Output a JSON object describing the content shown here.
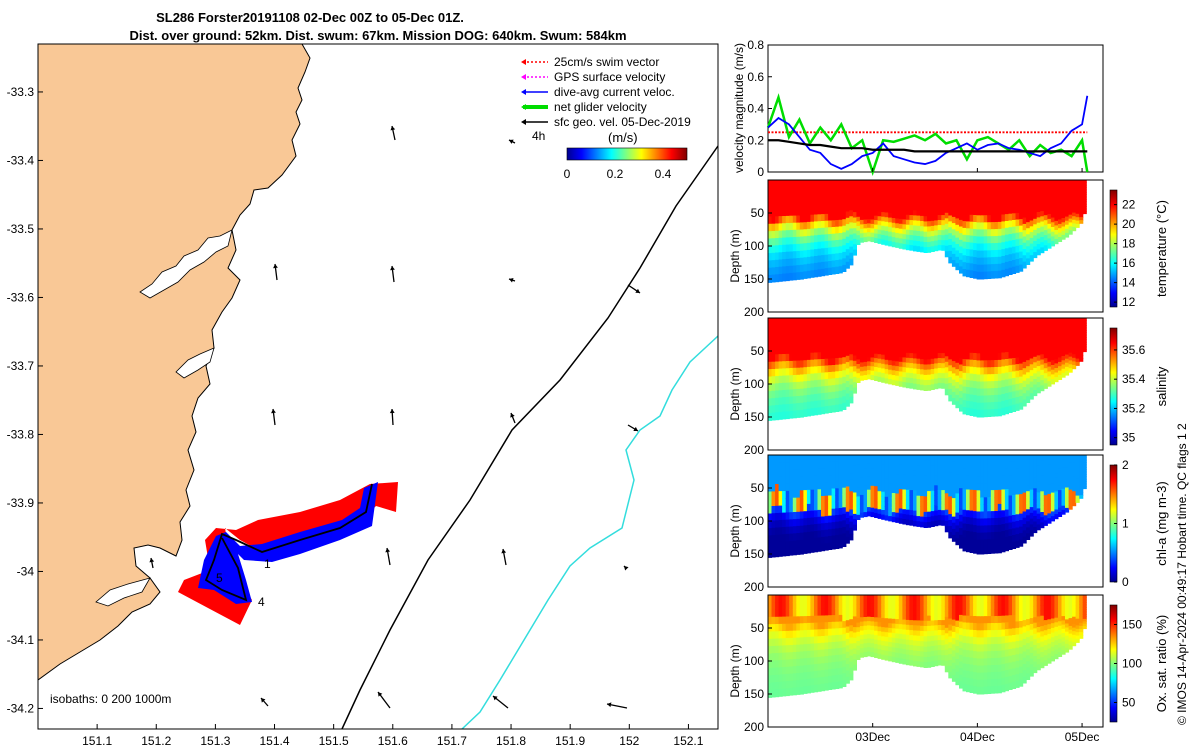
{
  "title": {
    "line1": "SL286 Forster20191108 02-Dec 00Z to 05-Dec 01Z.",
    "line2": "Dist. over ground: 52km. Dist. swum: 67km. Mission DOG: 640km. Swum: 584km"
  },
  "colors": {
    "land": "#f9c896",
    "ocean": "#ffffff",
    "swim": "#ff0000",
    "gps": "#ff00ff",
    "current": "#0000ff",
    "net": "#00dd00",
    "geo": "#000000",
    "isobath_200": "#000000",
    "isobath_1000": "#33dddd"
  },
  "map": {
    "lon_ticks": [
      "151.1",
      "151.2",
      "151.3",
      "151.4",
      "151.5",
      "151.6",
      "151.7",
      "151.8",
      "151.9",
      "152",
      "152.1"
    ],
    "lat_ticks": [
      "-33.3",
      "-33.4",
      "-33.5",
      "-33.6",
      "-33.7",
      "-33.8",
      "-33.9",
      "-34",
      "-34.1",
      "-34.2"
    ],
    "xlim": [
      151.0,
      152.15
    ],
    "ylim": [
      -34.23,
      -33.23
    ],
    "legend": [
      {
        "label": "25cm/s swim vector",
        "color": "#ff0000",
        "style": "dotted"
      },
      {
        "label": "GPS surface velocity",
        "color": "#ff00ff",
        "style": "dotted"
      },
      {
        "label": "dive-avg current veloc.",
        "color": "#0000ff",
        "style": "solid"
      },
      {
        "label": "net glider velocity",
        "color": "#00dd00",
        "style": "bold"
      },
      {
        "label": "sfc geo. vel. 05-Dec-2019",
        "color": "#000000",
        "style": "solid"
      }
    ],
    "legend_note": "4h",
    "colorbar": {
      "label": "(m/s)",
      "ticks": [
        "0",
        "0.2",
        "0.4"
      ],
      "range": [
        0,
        0.5
      ]
    },
    "isobath_label": "isobaths: 0   200  1000m",
    "waypoints": [
      "1",
      "4",
      "5"
    ]
  },
  "chart_data": [
    {
      "type": "line",
      "ylabel": "velocity magnitude (m/s)",
      "ylim": [
        0,
        0.8
      ],
      "yticks": [
        "0",
        "0.2",
        "0.4",
        "0.6",
        "0.8"
      ],
      "x": [
        0.0,
        0.1,
        0.2,
        0.3,
        0.4,
        0.5,
        0.6,
        0.7,
        0.8,
        0.9,
        1.0,
        1.1,
        1.2,
        1.3,
        1.4,
        1.5,
        1.6,
        1.7,
        1.8,
        1.9,
        2.0,
        2.1,
        2.2,
        2.3,
        2.4,
        2.5,
        2.6,
        2.7,
        2.8,
        2.9,
        3.0,
        3.05
      ],
      "series": [
        {
          "color": "#ff0000",
          "values": [
            0.25,
            0.25,
            0.25,
            0.25,
            0.25,
            0.25,
            0.25,
            0.25,
            0.25,
            0.25,
            0.25,
            0.25,
            0.25,
            0.25,
            0.25,
            0.25,
            0.25,
            0.25,
            0.25,
            0.25,
            0.25,
            0.25,
            0.25,
            0.25,
            0.25,
            0.25,
            0.25,
            0.25,
            0.25,
            0.25,
            0.25,
            0.25
          ]
        },
        {
          "color": "#00dd00",
          "values": [
            0.28,
            0.47,
            0.22,
            0.33,
            0.18,
            0.28,
            0.2,
            0.3,
            0.15,
            0.2,
            0.0,
            0.2,
            0.19,
            0.21,
            0.23,
            0.2,
            0.24,
            0.18,
            0.2,
            0.08,
            0.2,
            0.22,
            0.18,
            0.14,
            0.2,
            0.1,
            0.17,
            0.12,
            0.14,
            0.1,
            0.2,
            0.0
          ]
        },
        {
          "color": "#0000ff",
          "values": [
            0.28,
            0.34,
            0.3,
            0.22,
            0.14,
            0.12,
            0.05,
            0.02,
            0.05,
            0.1,
            0.12,
            0.18,
            0.1,
            0.08,
            0.06,
            0.05,
            0.07,
            0.12,
            0.15,
            0.18,
            0.14,
            0.17,
            0.18,
            0.15,
            0.14,
            0.12,
            0.1,
            0.15,
            0.18,
            0.26,
            0.3,
            0.48
          ]
        },
        {
          "color": "#000000",
          "values": [
            0.2,
            0.2,
            0.19,
            0.18,
            0.17,
            0.17,
            0.16,
            0.15,
            0.15,
            0.15,
            0.14,
            0.14,
            0.14,
            0.14,
            0.13,
            0.13,
            0.13,
            0.13,
            0.13,
            0.13,
            0.13,
            0.13,
            0.13,
            0.13,
            0.13,
            0.13,
            0.13,
            0.13,
            0.13,
            0.13,
            0.13,
            0.13
          ]
        }
      ]
    },
    {
      "type": "heatmap",
      "ylabel": "Depth (m)",
      "clabel": "temperature (°C)",
      "ylim": [
        200,
        0
      ],
      "yticks": [
        "50",
        "100",
        "150",
        "200"
      ],
      "cticks": [
        "12",
        "14",
        "16",
        "18",
        "20",
        "22"
      ],
      "crange": [
        11.5,
        23.5
      ],
      "profile": {
        "surface": 22,
        "bottom": 14,
        "mld": 55
      }
    },
    {
      "type": "heatmap",
      "ylabel": "Depth (m)",
      "clabel": "salinity",
      "ylim": [
        200,
        0
      ],
      "yticks": [
        "50",
        "100",
        "150",
        "200"
      ],
      "cticks": [
        "35",
        "35.2",
        "35.4",
        "35.6"
      ],
      "crange": [
        34.95,
        35.75
      ],
      "profile": {
        "surface": 35.65,
        "bottom": 35.25,
        "mld": 60
      }
    },
    {
      "type": "heatmap",
      "ylabel": "Depth (m)",
      "clabel": "chl-a (mg m-3)",
      "ylim": [
        200,
        0
      ],
      "yticks": [
        "50",
        "100",
        "150",
        "200"
      ],
      "cticks": [
        "0",
        "1",
        "2"
      ],
      "crange": [
        0,
        2
      ],
      "profile": {
        "surface": 0.7,
        "bottom": 0.05,
        "mld": 80
      }
    },
    {
      "type": "heatmap",
      "ylabel": "Depth (m)",
      "clabel": "Ox. sat. ratio (%)",
      "ylim": [
        200,
        0
      ],
      "yticks": [
        "50",
        "100",
        "150",
        "200"
      ],
      "cticks": [
        "50",
        "100",
        "150"
      ],
      "crange": [
        25,
        175
      ],
      "profile": {
        "surface": 135,
        "bottom": 95,
        "mld": 40
      }
    }
  ],
  "time_axis": {
    "ticks": [
      "03Dec",
      "04Dec",
      "05Dec"
    ],
    "xlim": [
      0,
      3.2
    ],
    "tick_pos": [
      1.0,
      2.0,
      3.0
    ]
  },
  "bottom_depth_profile": [
    {
      "t": 0.0,
      "d": 155
    },
    {
      "t": 0.3,
      "d": 150
    },
    {
      "t": 0.5,
      "d": 145
    },
    {
      "t": 0.7,
      "d": 140
    },
    {
      "t": 0.78,
      "d": 128
    },
    {
      "t": 0.85,
      "d": 95
    },
    {
      "t": 0.95,
      "d": 92
    },
    {
      "t": 1.1,
      "d": 98
    },
    {
      "t": 1.3,
      "d": 105
    },
    {
      "t": 1.5,
      "d": 110
    },
    {
      "t": 1.65,
      "d": 105
    },
    {
      "t": 1.72,
      "d": 125
    },
    {
      "t": 1.85,
      "d": 145
    },
    {
      "t": 2.0,
      "d": 150
    },
    {
      "t": 2.2,
      "d": 148
    },
    {
      "t": 2.4,
      "d": 138
    },
    {
      "t": 2.55,
      "d": 115
    },
    {
      "t": 2.7,
      "d": 100
    },
    {
      "t": 2.85,
      "d": 85
    },
    {
      "t": 2.95,
      "d": 70
    },
    {
      "t": 3.0,
      "d": 60
    },
    {
      "t": 3.02,
      "d": 30
    }
  ],
  "side_label": "© IMOS 14-Apr-2024 00:49:17 Hobart time. QC flags 1  2"
}
